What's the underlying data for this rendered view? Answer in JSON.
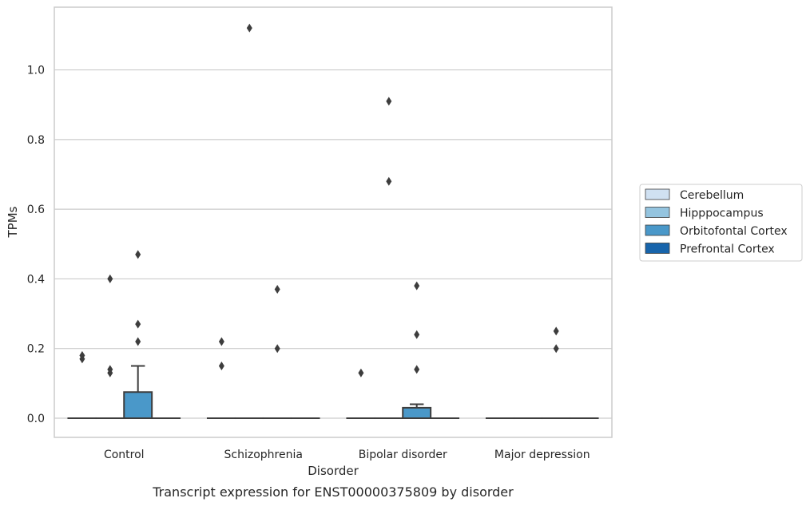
{
  "caption": "Transcript expression for ENST00000375809 by disorder",
  "chart_data": {
    "type": "box",
    "xlabel": "Disorder",
    "ylabel": "TPMs",
    "categories": [
      "Control",
      "Schizophrenia",
      "Bipolar disorder",
      "Major depression"
    ],
    "ylim": [
      -0.055,
      1.18
    ],
    "yticks": [
      0.0,
      0.2,
      0.4,
      0.6,
      0.8,
      1.0
    ],
    "ytick_labels": [
      "0.0",
      "0.2",
      "0.4",
      "0.6",
      "0.8",
      "1.0"
    ],
    "grid": true,
    "legend_position": "right",
    "series": [
      {
        "name": "Cerebellum",
        "color": "#d0e1f2",
        "boxes": [
          {
            "q1": 0,
            "median": 0,
            "q3": 0,
            "whisker_low": 0,
            "whisker_high": 0,
            "outliers": [
              0.17,
              0.18
            ]
          },
          {
            "q1": 0,
            "median": 0,
            "q3": 0,
            "whisker_low": 0,
            "whisker_high": 0,
            "outliers": [
              0.15,
              0.22
            ]
          },
          {
            "q1": 0,
            "median": 0,
            "q3": 0,
            "whisker_low": 0,
            "whisker_high": 0,
            "outliers": [
              0.13
            ]
          },
          {
            "q1": 0,
            "median": 0,
            "q3": 0,
            "whisker_low": 0,
            "whisker_high": 0,
            "outliers": []
          }
        ]
      },
      {
        "name": "Hipppocampus",
        "color": "#94c4df",
        "boxes": [
          {
            "q1": 0,
            "median": 0,
            "q3": 0,
            "whisker_low": 0,
            "whisker_high": 0,
            "outliers": [
              0.13,
              0.14,
              0.4
            ]
          },
          {
            "q1": 0,
            "median": 0,
            "q3": 0,
            "whisker_low": 0,
            "whisker_high": 0,
            "outliers": [
              1.12
            ]
          },
          {
            "q1": 0,
            "median": 0,
            "q3": 0,
            "whisker_low": 0,
            "whisker_high": 0,
            "outliers": [
              0.68,
              0.91
            ]
          },
          {
            "q1": 0,
            "median": 0,
            "q3": 0,
            "whisker_low": 0,
            "whisker_high": 0,
            "outliers": []
          }
        ]
      },
      {
        "name": "Orbitofontal Cortex",
        "color": "#4a98c9",
        "boxes": [
          {
            "q1": 0,
            "median": 0,
            "q3": 0.075,
            "whisker_low": 0,
            "whisker_high": 0.15,
            "outliers": [
              0.22,
              0.27,
              0.47
            ]
          },
          {
            "q1": 0,
            "median": 0,
            "q3": 0,
            "whisker_low": 0,
            "whisker_high": 0,
            "outliers": [
              0.2,
              0.37
            ]
          },
          {
            "q1": 0,
            "median": 0,
            "q3": 0.03,
            "whisker_low": 0,
            "whisker_high": 0.04,
            "outliers": [
              0.14,
              0.24,
              0.38
            ]
          },
          {
            "q1": 0,
            "median": 0,
            "q3": 0,
            "whisker_low": 0,
            "whisker_high": 0,
            "outliers": [
              0.2,
              0.25
            ]
          }
        ]
      },
      {
        "name": "Prefrontal Cortex",
        "color": "#1764ab",
        "boxes": [
          {
            "q1": 0,
            "median": 0,
            "q3": 0,
            "whisker_low": 0,
            "whisker_high": 0,
            "outliers": []
          },
          {
            "q1": 0,
            "median": 0,
            "q3": 0,
            "whisker_low": 0,
            "whisker_high": 0,
            "outliers": []
          },
          {
            "q1": 0,
            "median": 0,
            "q3": 0,
            "whisker_low": 0,
            "whisker_high": 0,
            "outliers": []
          },
          {
            "q1": 0,
            "median": 0,
            "q3": 0,
            "whisker_low": 0,
            "whisker_high": 0,
            "outliers": []
          }
        ]
      }
    ]
  }
}
